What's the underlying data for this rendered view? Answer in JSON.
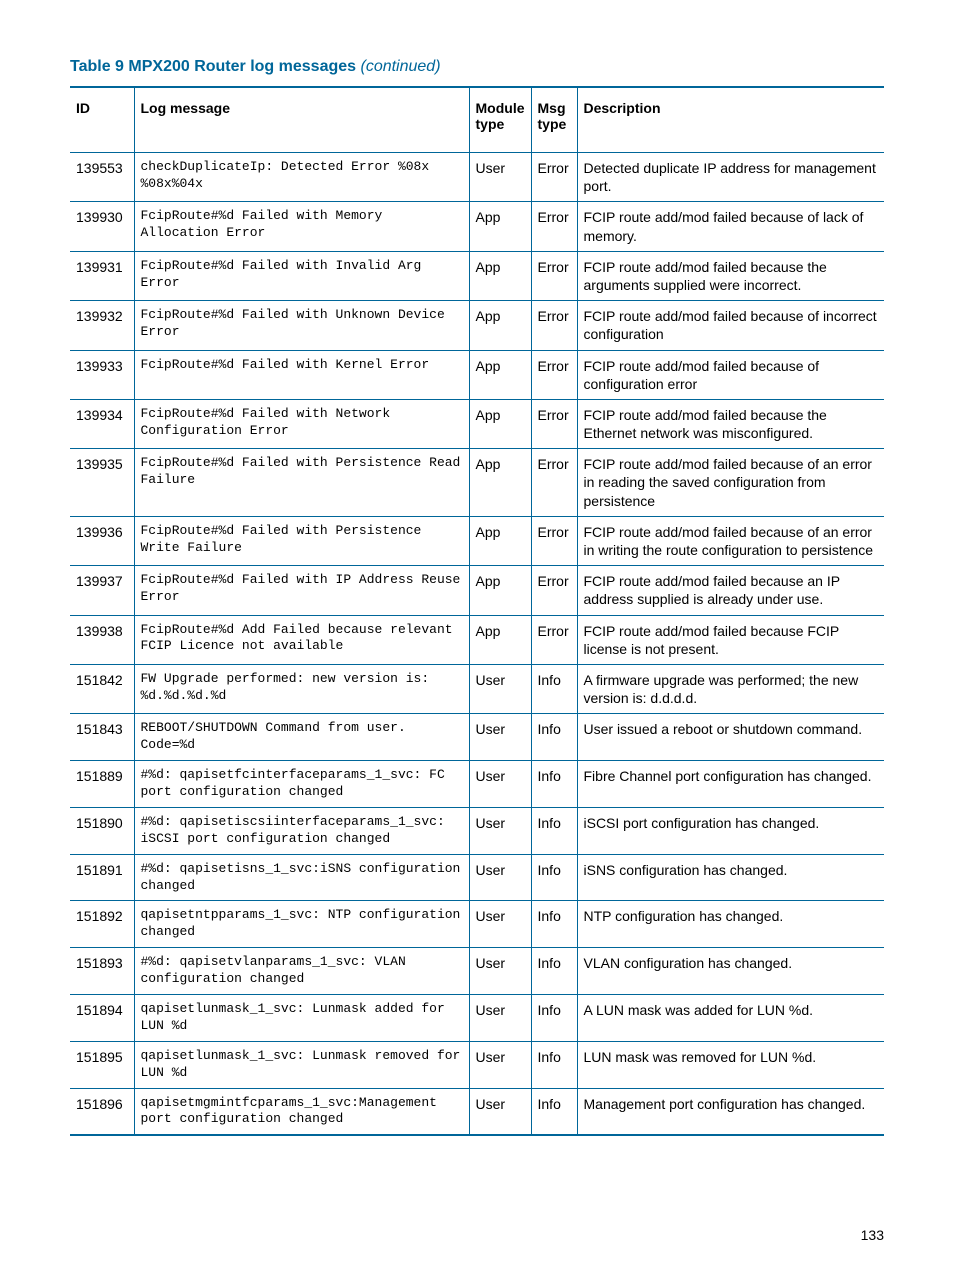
{
  "table_caption_prefix": "Table 9 MPX200 Router log messages ",
  "table_caption_suffix": "(continued)",
  "headers": {
    "id": "ID",
    "log": "Log message",
    "module": "Module type",
    "msg": "Msg type",
    "desc": "Description"
  },
  "rows": [
    {
      "id": "139553",
      "log": "checkDuplicateIp: Detected Error %08x %08x%04x",
      "module": "User",
      "msg": "Error",
      "desc": "Detected duplicate IP address for management port."
    },
    {
      "id": "139930",
      "log": "FcipRoute#%d Failed with Memory Allocation Error",
      "module": "App",
      "msg": "Error",
      "desc": "FCIP route add/mod failed because of lack of memory."
    },
    {
      "id": "139931",
      "log": "FcipRoute#%d Failed with Invalid Arg Error",
      "module": "App",
      "msg": "Error",
      "desc": "FCIP route add/mod failed because the arguments supplied were incorrect."
    },
    {
      "id": "139932",
      "log": "FcipRoute#%d Failed with Unknown Device Error",
      "module": "App",
      "msg": "Error",
      "desc": "FCIP route add/mod failed because of incorrect configuration"
    },
    {
      "id": "139933",
      "log": "FcipRoute#%d Failed with Kernel Error",
      "module": "App",
      "msg": "Error",
      "desc": "FCIP route add/mod failed because of configuration error"
    },
    {
      "id": "139934",
      "log": "FcipRoute#%d Failed with Network Configuration Error",
      "module": "App",
      "msg": "Error",
      "desc": "FCIP route add/mod failed because the Ethernet network was misconfigured."
    },
    {
      "id": "139935",
      "log": "FcipRoute#%d Failed with Persistence Read Failure",
      "module": "App",
      "msg": "Error",
      "desc": "FCIP route add/mod failed because of an error in reading the saved configuration from persistence"
    },
    {
      "id": "139936",
      "log": "FcipRoute#%d Failed with Persistence Write Failure",
      "module": "App",
      "msg": "Error",
      "desc": "FCIP route add/mod failed because of an error in writing the route configuration to persistence"
    },
    {
      "id": "139937",
      "log": "FcipRoute#%d Failed with IP Address Reuse Error",
      "module": "App",
      "msg": "Error",
      "desc": "FCIP route add/mod failed because an IP address supplied is already under use."
    },
    {
      "id": "139938",
      "log": "FcipRoute#%d Add Failed because relevant FCIP Licence not available",
      "module": "App",
      "msg": "Error",
      "desc": "FCIP route add/mod failed because FCIP license is not present."
    },
    {
      "id": "151842",
      "log": "FW Upgrade performed: new version is: %d.%d.%d.%d",
      "module": "User",
      "msg": "Info",
      "desc": "A firmware upgrade was performed; the new version is: d.d.d.d."
    },
    {
      "id": "151843",
      "log": "REBOOT/SHUTDOWN Command from user. Code=%d",
      "module": "User",
      "msg": "Info",
      "desc": "User issued a reboot or shutdown command."
    },
    {
      "id": "151889",
      "log": "#%d: qapisetfcinterfaceparams_1_svc: FC port configuration changed",
      "module": "User",
      "msg": "Info",
      "desc": "Fibre Channel port configuration has changed."
    },
    {
      "id": "151890",
      "log": "#%d: qapisetiscsiinterfaceparams_1_svc: iSCSI port configuration changed",
      "module": "User",
      "msg": "Info",
      "desc": "iSCSI port configuration has changed."
    },
    {
      "id": "151891",
      "log": "#%d: qapisetisns_1_svc:iSNS configuration changed",
      "module": "User",
      "msg": "Info",
      "desc": "iSNS configuration has changed."
    },
    {
      "id": "151892",
      "log": "qapisetntpparams_1_svc: NTP configuration changed",
      "module": "User",
      "msg": "Info",
      "desc": "NTP configuration has changed."
    },
    {
      "id": "151893",
      "log": "#%d: qapisetvlanparams_1_svc: VLAN configuration changed",
      "module": "User",
      "msg": "Info",
      "desc": "VLAN configuration has changed."
    },
    {
      "id": "151894",
      "log": "qapisetlunmask_1_svc: Lunmask added for LUN %d",
      "module": "User",
      "msg": "Info",
      "desc": "A LUN mask was added for LUN %d."
    },
    {
      "id": "151895",
      "log": "qapisetlunmask_1_svc: Lunmask removed for LUN %d",
      "module": "User",
      "msg": "Info",
      "desc": "LUN mask was removed for LUN %d."
    },
    {
      "id": "151896",
      "log": "qapisetmgmintfcparams_1_svc:Management port configuration changed",
      "module": "User",
      "msg": "Info",
      "desc": "Management port configuration has changed."
    }
  ],
  "page_number": "133",
  "colors": {
    "accent": "#006699",
    "text": "#000000",
    "background": "#ffffff"
  },
  "fonts": {
    "body": "Arial, Helvetica, sans-serif",
    "mono": "Courier New, monospace",
    "title_size_pt": 12,
    "cell_size_pt": 10
  }
}
